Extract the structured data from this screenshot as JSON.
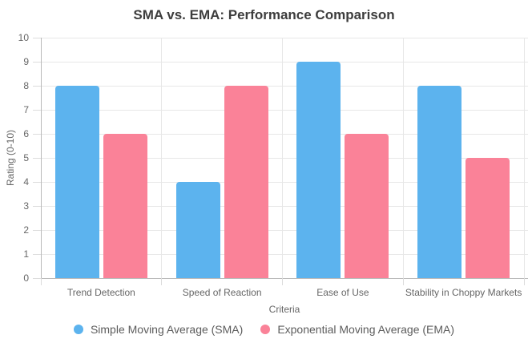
{
  "title": "SMA vs. EMA: Performance Comparison",
  "chart_data": {
    "type": "bar",
    "title": "SMA vs. EMA: Performance Comparison",
    "categories": [
      "Trend Detection",
      "Speed of Reaction",
      "Ease of Use",
      "Stability in Choppy Markets"
    ],
    "series": [
      {
        "name": "Simple Moving Average (SMA)",
        "color": "#5CB3EE",
        "values": [
          8,
          4,
          9,
          8
        ]
      },
      {
        "name": "Exponential Moving Average (EMA)",
        "color": "#FA8298",
        "values": [
          6,
          8,
          6,
          5
        ]
      }
    ],
    "xlabel": "Criteria",
    "ylabel": "Rating (0-10)",
    "ylim": [
      0,
      10
    ],
    "ytick_step": 1,
    "grid": true,
    "legend_position": "bottom",
    "marker_style": "circle"
  },
  "colors": {
    "grid": "#e7e7e7",
    "axis": "#b9b9b9",
    "title_text": "#3d3d3d",
    "tick_text": "#666666",
    "legend_text": "#5c5c5c",
    "background": "#ffffff"
  }
}
